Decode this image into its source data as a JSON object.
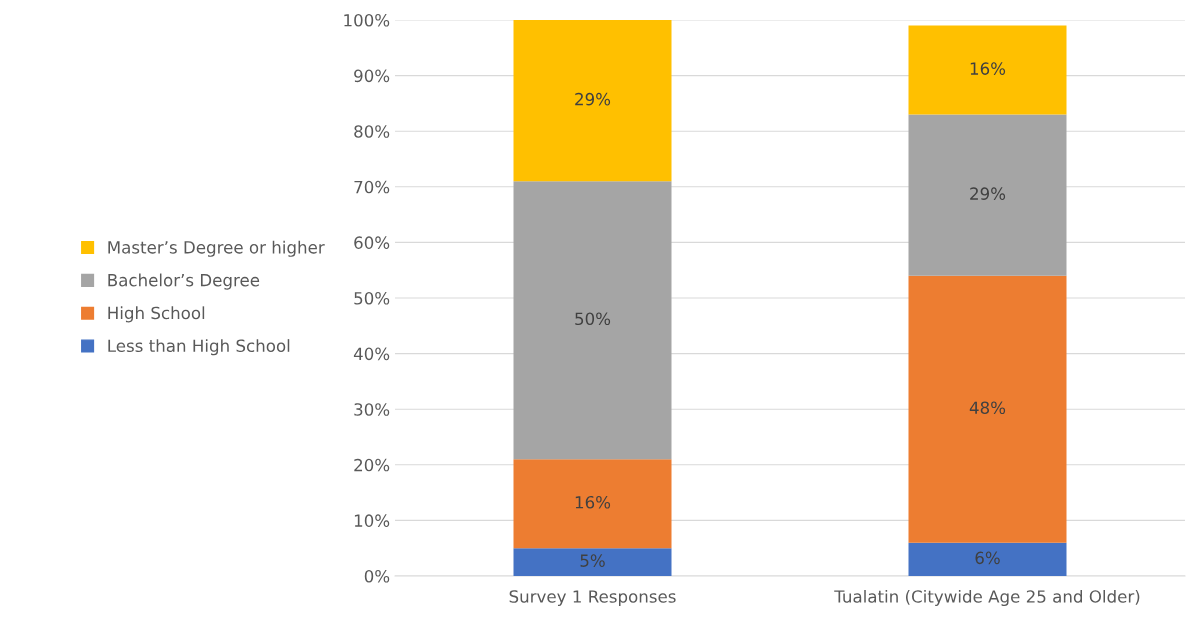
{
  "chart_data": {
    "type": "bar",
    "stacked": true,
    "categories": [
      "Survey 1 Responses",
      "Tualatin (Citywide Age 25 and Older)"
    ],
    "series": [
      {
        "name": "Less than High School",
        "color": "#4472c4",
        "values": [
          5,
          6
        ],
        "value_labels": [
          "5%",
          "6%"
        ]
      },
      {
        "name": "High School",
        "color": "#ed7d31",
        "values": [
          16,
          48
        ],
        "value_labels": [
          "16%",
          "48%"
        ]
      },
      {
        "name": "Bachelor’s Degree",
        "color": "#a5a5a5",
        "values": [
          50,
          29
        ],
        "value_labels": [
          "50%",
          "29%"
        ]
      },
      {
        "name": "Master’s Degree or higher",
        "color": "#ffc000",
        "values": [
          29,
          16
        ],
        "value_labels": [
          "29%",
          "16%"
        ]
      }
    ],
    "ylim": [
      0,
      100
    ],
    "yticks": [
      {
        "value": 0,
        "label": "0%"
      },
      {
        "value": 10,
        "label": "10%"
      },
      {
        "value": 20,
        "label": "20%"
      },
      {
        "value": 30,
        "label": "30%"
      },
      {
        "value": 40,
        "label": "40%"
      },
      {
        "value": 50,
        "label": "50%"
      },
      {
        "value": 60,
        "label": "60%"
      },
      {
        "value": 70,
        "label": "70%"
      },
      {
        "value": 80,
        "label": "80%"
      },
      {
        "value": 90,
        "label": "90%"
      },
      {
        "value": 100,
        "label": "100%"
      }
    ],
    "grid": "y",
    "legend": "left"
  }
}
